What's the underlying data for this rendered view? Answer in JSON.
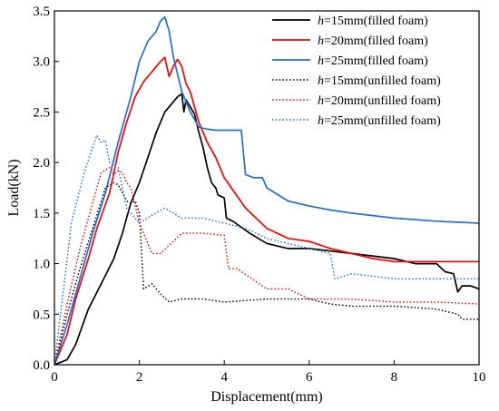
{
  "chart_data": {
    "type": "line",
    "title": "",
    "xlabel": "Displacement(mm)",
    "ylabel": "Load(kN)",
    "xlim": [
      0,
      10
    ],
    "ylim": [
      0,
      3.5
    ],
    "xticks": [
      0,
      2,
      4,
      6,
      8,
      10
    ],
    "yticks": [
      0.0,
      0.5,
      1.0,
      1.5,
      2.0,
      2.5,
      3.0,
      3.5
    ],
    "xtick_labels": [
      "0",
      "2",
      "4",
      "6",
      "8",
      "10"
    ],
    "ytick_labels": [
      "0.0",
      "0.5",
      "1.0",
      "1.5",
      "2.0",
      "2.5",
      "3.0",
      "3.5"
    ],
    "grid": false,
    "legend_position": "top-right",
    "series": [
      {
        "name_var": "h",
        "name_rest": "=15mm(filled foam)",
        "color": "#000000",
        "style": "solid",
        "x": [
          0,
          0.3,
          0.5,
          0.8,
          1.1,
          1.4,
          1.6,
          1.8,
          2.0,
          2.2,
          2.4,
          2.6,
          2.8,
          2.9,
          3.0,
          3.05,
          3.1,
          3.2,
          3.3,
          3.4,
          3.5,
          3.6,
          3.7,
          3.8,
          3.85,
          4.0,
          4.05,
          4.2,
          4.6,
          5.0,
          5.5,
          6.0,
          6.6,
          7.0,
          8.0,
          8.5,
          9.0,
          9.2,
          9.4,
          9.5,
          9.6,
          9.8,
          10.0
        ],
        "y": [
          0,
          0.05,
          0.2,
          0.55,
          0.8,
          1.05,
          1.3,
          1.6,
          1.8,
          2.05,
          2.3,
          2.5,
          2.6,
          2.65,
          2.68,
          2.5,
          2.62,
          2.55,
          2.48,
          2.3,
          2.15,
          1.95,
          1.8,
          1.75,
          1.68,
          1.65,
          1.45,
          1.42,
          1.3,
          1.2,
          1.15,
          1.15,
          1.12,
          1.1,
          1.05,
          1.0,
          1.0,
          0.92,
          0.9,
          0.72,
          0.78,
          0.78,
          0.75
        ]
      },
      {
        "name_var": "h",
        "name_rest": "=20mm(filled foam)",
        "color": "#ff0000",
        "style": "solid",
        "x": [
          0,
          0.3,
          0.5,
          0.8,
          1.0,
          1.3,
          1.5,
          1.7,
          1.9,
          2.1,
          2.3,
          2.5,
          2.6,
          2.7,
          2.8,
          2.9,
          3.0,
          3.1,
          3.2,
          3.4,
          3.6,
          3.8,
          4.0,
          4.5,
          5.0,
          5.5,
          6.0,
          6.5,
          7.0,
          7.5,
          8.0,
          9.0,
          10.0
        ],
        "y": [
          0,
          0.3,
          0.65,
          1.05,
          1.35,
          1.7,
          2.1,
          2.4,
          2.65,
          2.8,
          2.9,
          3.0,
          3.04,
          2.85,
          2.95,
          3.02,
          2.95,
          2.78,
          2.7,
          2.4,
          2.2,
          2.05,
          1.85,
          1.55,
          1.35,
          1.25,
          1.22,
          1.15,
          1.1,
          1.05,
          1.02,
          1.02,
          1.02
        ]
      },
      {
        "name_var": "h",
        "name_rest": "=25mm(filled foam)",
        "color": "#1f6fd6",
        "style": "solid",
        "x": [
          0,
          0.3,
          0.6,
          0.9,
          1.2,
          1.5,
          1.8,
          2.0,
          2.2,
          2.4,
          2.5,
          2.6,
          2.7,
          2.8,
          3.0,
          3.2,
          3.4,
          3.6,
          3.8,
          4.0,
          4.4,
          4.5,
          4.7,
          4.9,
          5.0,
          5.5,
          6.0,
          6.5,
          7.0,
          8.0,
          9.0,
          10.0
        ],
        "y": [
          0,
          0.4,
          0.85,
          1.3,
          1.7,
          2.2,
          2.65,
          3.0,
          3.2,
          3.3,
          3.4,
          3.44,
          3.3,
          3.05,
          2.7,
          2.5,
          2.35,
          2.33,
          2.32,
          2.32,
          2.32,
          1.88,
          1.85,
          1.85,
          1.75,
          1.62,
          1.57,
          1.53,
          1.5,
          1.45,
          1.42,
          1.4
        ]
      },
      {
        "name_var": "h",
        "name_rest": "=15mm(unfilled foam)",
        "color": "#000000",
        "style": "dotted",
        "x": [
          0,
          0.3,
          0.6,
          0.9,
          1.2,
          1.4,
          1.5,
          1.6,
          1.7,
          1.8,
          1.9,
          2.0,
          2.1,
          2.3,
          2.5,
          2.7,
          3.0,
          3.5,
          4.0,
          5.0,
          6.0,
          6.5,
          7.0,
          8.0,
          9.0,
          9.5,
          9.6,
          10.0
        ],
        "y": [
          0,
          0.5,
          0.95,
          1.35,
          1.75,
          1.8,
          1.78,
          1.7,
          1.62,
          1.6,
          1.62,
          1.5,
          0.75,
          0.8,
          0.7,
          0.62,
          0.65,
          0.65,
          0.62,
          0.65,
          0.65,
          0.6,
          0.58,
          0.58,
          0.55,
          0.5,
          0.45,
          0.45
        ]
      },
      {
        "name_var": "h",
        "name_rest": "=20mm(unfilled foam)",
        "color": "#ff0000",
        "style": "dotted",
        "x": [
          0,
          0.3,
          0.6,
          0.9,
          1.1,
          1.3,
          1.4,
          1.5,
          1.6,
          1.7,
          1.8,
          2.0,
          2.3,
          2.5,
          3.0,
          3.5,
          4.0,
          4.1,
          4.3,
          5.0,
          5.5,
          6.0,
          6.5,
          7.0,
          8.0,
          9.0,
          10.0
        ],
        "y": [
          0,
          0.6,
          1.15,
          1.6,
          1.9,
          1.95,
          1.88,
          1.92,
          1.9,
          1.8,
          1.75,
          1.4,
          1.1,
          1.1,
          1.3,
          1.3,
          1.28,
          0.95,
          0.95,
          0.75,
          0.75,
          0.65,
          0.65,
          0.65,
          0.62,
          0.62,
          0.6
        ]
      },
      {
        "name_var": "h",
        "name_rest": "=25mm(unfilled foam)",
        "color": "#1f6fd6",
        "style": "dotted",
        "x": [
          0,
          0.2,
          0.4,
          0.7,
          0.9,
          1.0,
          1.1,
          1.2,
          1.3,
          1.5,
          1.7,
          2.0,
          2.3,
          2.6,
          3.0,
          3.5,
          4.0,
          4.5,
          5.0,
          5.5,
          6.0,
          6.5,
          6.6,
          7.0,
          8.0,
          9.0,
          10.0
        ],
        "y": [
          0,
          0.7,
          1.4,
          1.9,
          2.15,
          2.27,
          2.2,
          2.22,
          2.0,
          1.95,
          1.55,
          1.4,
          1.48,
          1.55,
          1.45,
          1.45,
          1.4,
          1.35,
          1.25,
          1.2,
          1.15,
          1.1,
          0.85,
          0.9,
          0.85,
          0.85,
          0.85
        ]
      }
    ]
  }
}
